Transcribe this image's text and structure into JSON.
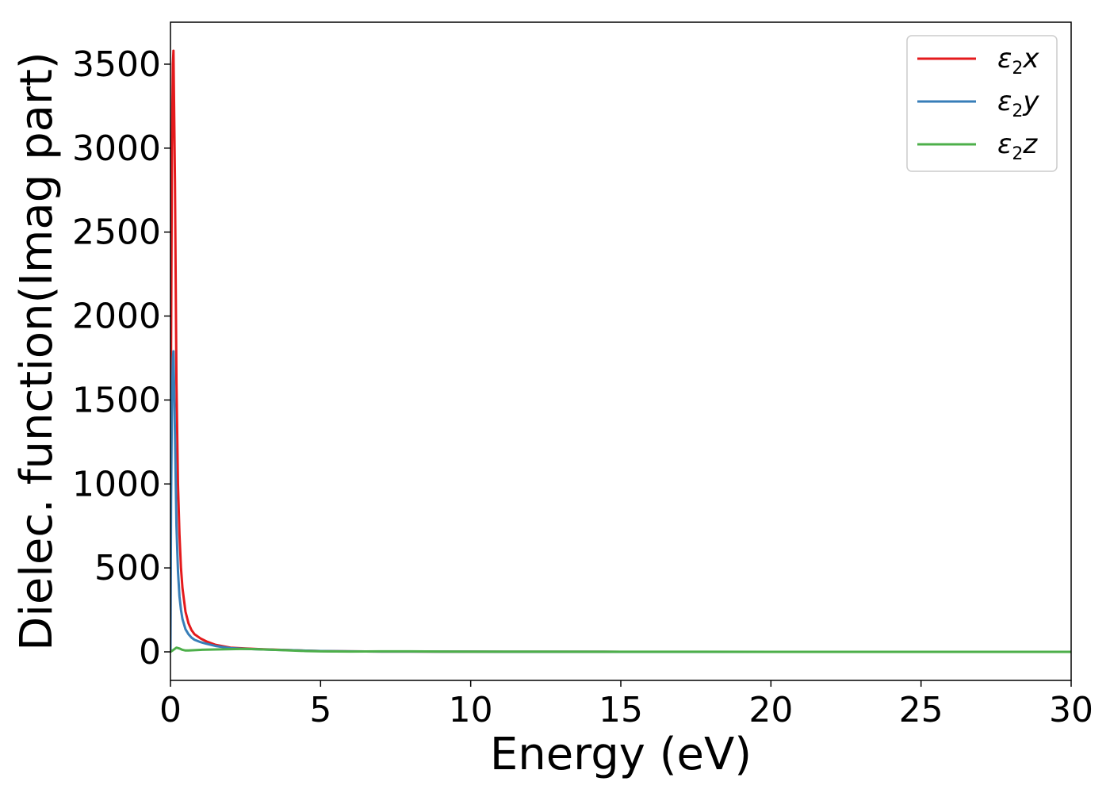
{
  "chart_data": {
    "type": "line",
    "title": "",
    "xlabel": "Energy (eV)",
    "ylabel": "Dielec. function(Imag part)",
    "xlim": [
      0,
      30
    ],
    "ylim": [
      -170,
      3750
    ],
    "xticks": [
      0,
      5,
      10,
      15,
      20,
      25,
      30
    ],
    "yticks": [
      0,
      500,
      1000,
      1500,
      2000,
      2500,
      3000,
      3500
    ],
    "grid": false,
    "legend_position": "top-right",
    "series": [
      {
        "name": "ε₂x",
        "legend_base": "ε",
        "legend_sub": "2",
        "legend_suffix": "x",
        "color": "#e41a1c",
        "x": [
          0,
          0.02,
          0.05,
          0.08,
          0.1,
          0.15,
          0.2,
          0.25,
          0.3,
          0.35,
          0.4,
          0.5,
          0.6,
          0.7,
          0.8,
          1.0,
          1.2,
          1.5,
          2.0,
          2.5,
          3.0,
          3.5,
          4.0,
          4.5,
          5.0,
          6.0,
          7.0,
          8.0,
          9.0,
          10.0,
          12.0,
          15.0,
          20.0,
          25.0,
          30.0
        ],
        "y": [
          0,
          1800,
          3000,
          3500,
          3580,
          2800,
          1600,
          1000,
          700,
          500,
          380,
          240,
          170,
          130,
          105,
          80,
          62,
          42,
          25,
          20,
          16,
          13,
          10,
          7,
          5,
          3,
          2,
          2,
          1,
          1,
          0.5,
          0.3,
          0.2,
          0.1,
          0
        ]
      },
      {
        "name": "ε₂y",
        "legend_base": "ε",
        "legend_sub": "2",
        "legend_suffix": "y",
        "color": "#377eb8",
        "x": [
          0,
          0.02,
          0.05,
          0.08,
          0.1,
          0.15,
          0.2,
          0.25,
          0.3,
          0.35,
          0.4,
          0.5,
          0.6,
          0.7,
          0.8,
          1.0,
          1.2,
          1.5,
          2.0,
          2.5,
          3.0,
          3.5,
          4.0,
          4.5,
          5.0,
          6.0,
          7.0,
          8.0,
          9.0,
          10.0,
          12.0,
          15.0,
          20.0,
          25.0,
          30.0
        ],
        "y": [
          0,
          900,
          1500,
          1750,
          1790,
          1300,
          750,
          480,
          330,
          250,
          195,
          135,
          105,
          85,
          72,
          58,
          48,
          35,
          22,
          18,
          15,
          12,
          10,
          7,
          5,
          3,
          2,
          2,
          1,
          1,
          0.5,
          0.3,
          0.2,
          0.1,
          0
        ]
      },
      {
        "name": "ε₂z",
        "legend_base": "ε",
        "legend_sub": "2",
        "legend_suffix": "z",
        "color": "#4daf4a",
        "x": [
          0,
          0.1,
          0.2,
          0.3,
          0.4,
          0.5,
          0.6,
          0.8,
          1.0,
          1.5,
          2.0,
          2.5,
          3.0,
          3.5,
          4.0,
          4.5,
          5.0,
          6.0,
          7.0,
          8.0,
          9.0,
          10.0,
          12.0,
          15.0,
          20.0,
          25.0,
          30.0
        ],
        "y": [
          0,
          12,
          25,
          20,
          12,
          8,
          8,
          10,
          12,
          14,
          16,
          18,
          15,
          12,
          8,
          5,
          3,
          2,
          3,
          3,
          2,
          1,
          1,
          0.5,
          0.2,
          0.1,
          0
        ]
      }
    ]
  }
}
